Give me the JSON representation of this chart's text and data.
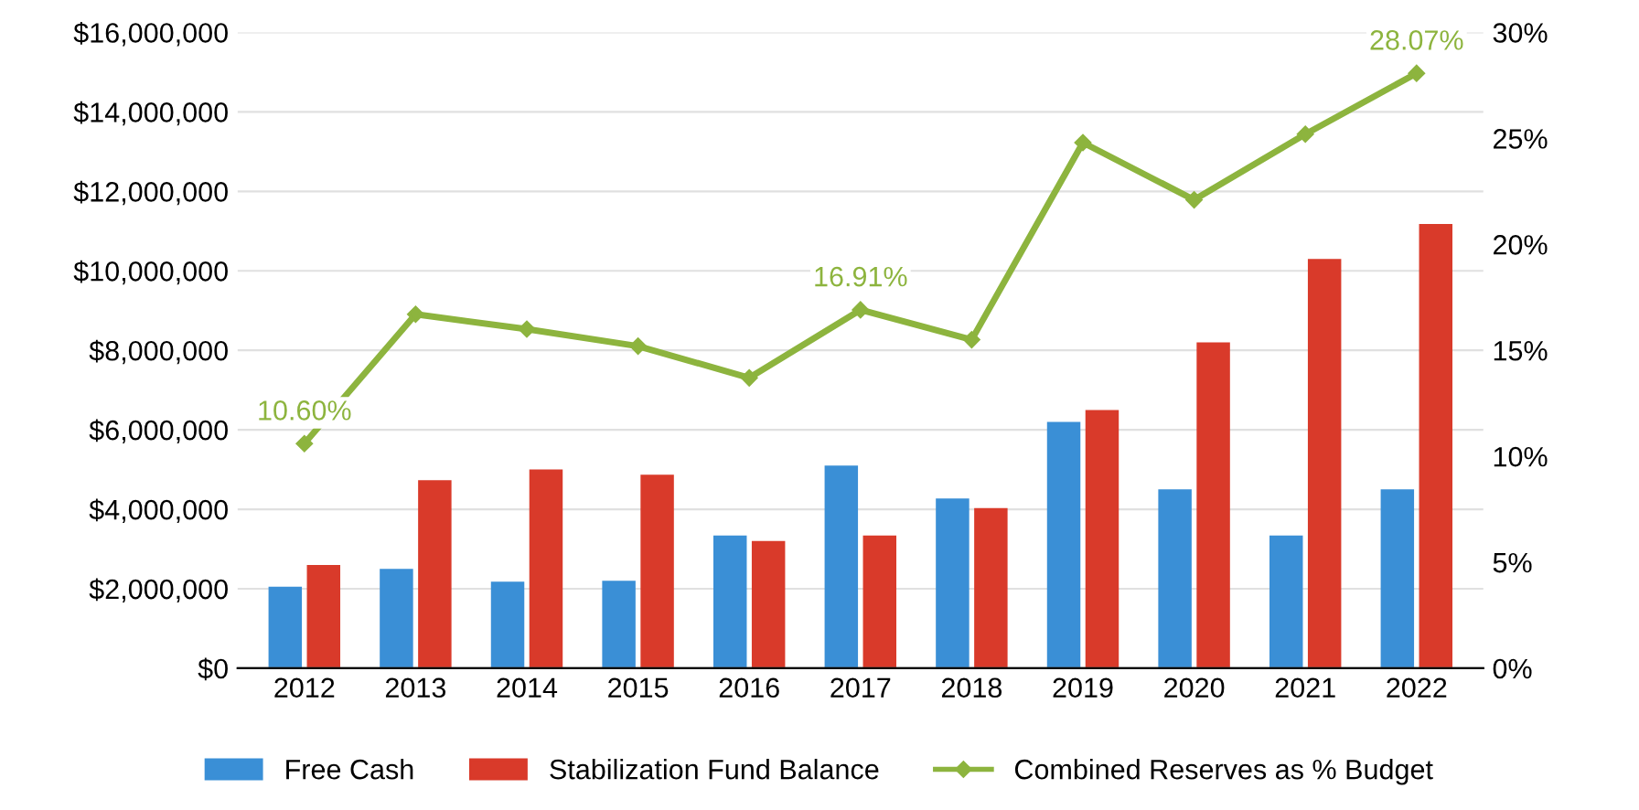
{
  "chart_data": {
    "type": "bar",
    "categories": [
      "2012",
      "2013",
      "2014",
      "2015",
      "2016",
      "2017",
      "2018",
      "2019",
      "2020",
      "2021",
      "2022"
    ],
    "series": [
      {
        "name": "Free Cash",
        "color": "#3a8fd6",
        "values": [
          2050000,
          2500000,
          2180000,
          2200000,
          3340000,
          5100000,
          4270000,
          6200000,
          4500000,
          3340000,
          4500000
        ]
      },
      {
        "name": "Stabilization Fund Balance",
        "color": "#d93a2a",
        "values": [
          2600000,
          4730000,
          5000000,
          4870000,
          3200000,
          3340000,
          4030000,
          6500000,
          8200000,
          10300000,
          11180000
        ]
      },
      {
        "name": "Combined Reserves as % Budget",
        "type": "line",
        "axis": "y2",
        "color": "#8db43e",
        "marker": "diamond",
        "values": [
          10.6,
          16.7,
          16.0,
          15.2,
          13.7,
          16.91,
          15.5,
          24.8,
          22.1,
          25.2,
          28.07
        ],
        "value_labels": [
          "10.60%",
          null,
          null,
          null,
          null,
          "16.91%",
          null,
          null,
          null,
          null,
          "28.07%"
        ]
      }
    ],
    "ylim": [
      0,
      16000000
    ],
    "yticks": [
      {
        "value": 0,
        "label": "$0"
      },
      {
        "value": 2000000,
        "label": "$2,000,000"
      },
      {
        "value": 4000000,
        "label": "$4,000,000"
      },
      {
        "value": 6000000,
        "label": "$6,000,000"
      },
      {
        "value": 8000000,
        "label": "$8,000,000"
      },
      {
        "value": 10000000,
        "label": "$10,000,000"
      },
      {
        "value": 12000000,
        "label": "$12,000,000"
      },
      {
        "value": 14000000,
        "label": "$14,000,000"
      },
      {
        "value": 16000000,
        "label": "$16,000,000"
      }
    ],
    "y2lim": [
      0,
      30
    ],
    "y2ticks": [
      {
        "value": 0,
        "label": "0%"
      },
      {
        "value": 5,
        "label": "5%"
      },
      {
        "value": 10,
        "label": "10%"
      },
      {
        "value": 15,
        "label": "15%"
      },
      {
        "value": 20,
        "label": "20%"
      },
      {
        "value": 25,
        "label": "25%"
      },
      {
        "value": 30,
        "label": "30%"
      }
    ],
    "grid": "y",
    "legend": "bottom"
  }
}
